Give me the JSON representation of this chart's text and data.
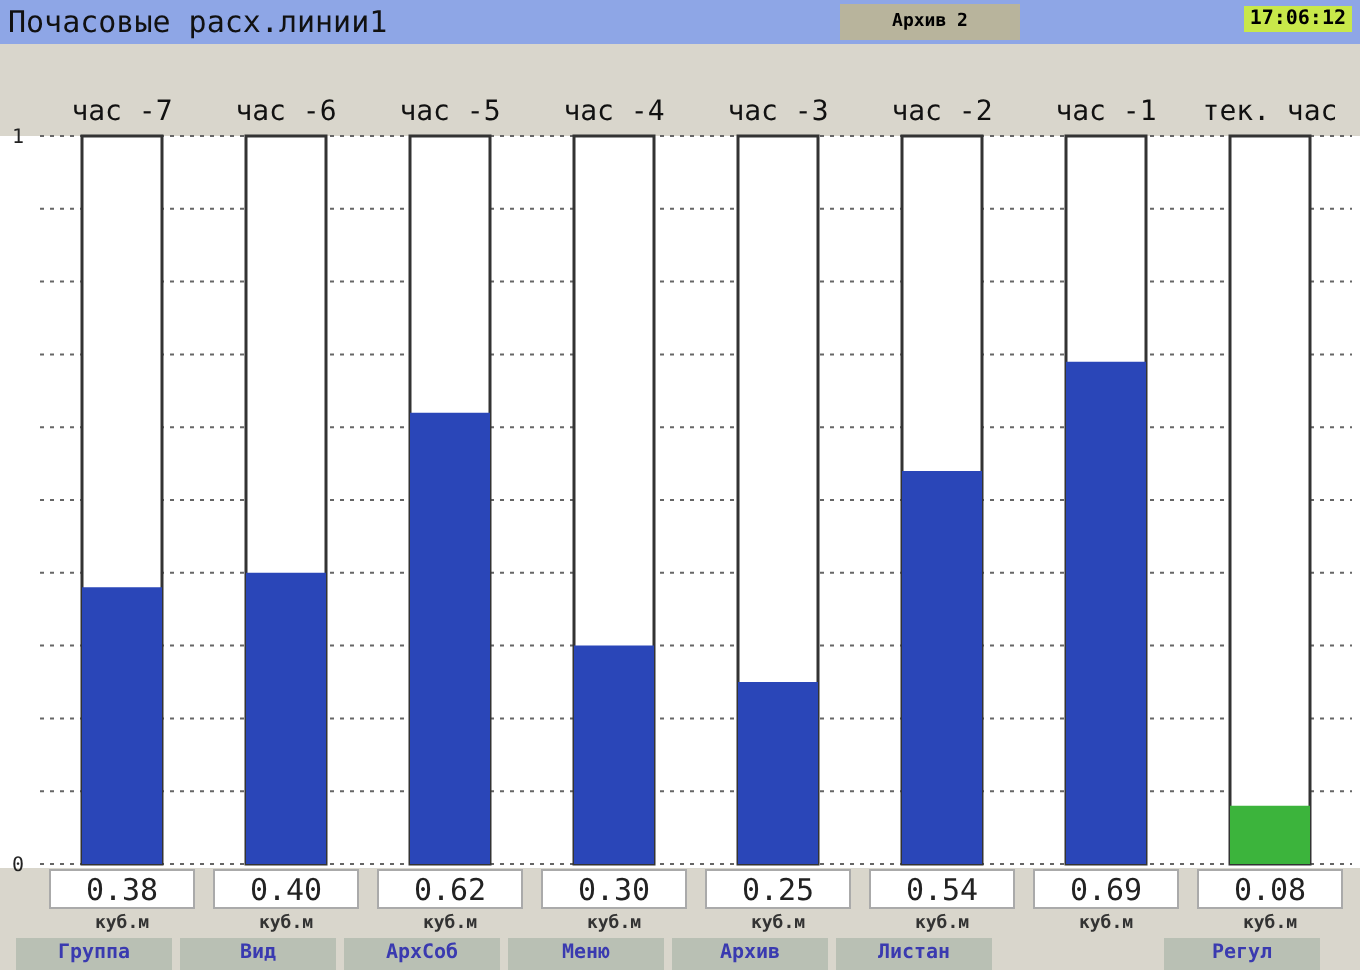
{
  "chart_data": {
    "type": "bar",
    "title": "Почасовые расх.линии1",
    "categories": [
      "час -7",
      "час -6",
      "час -5",
      "час -4",
      "час -3",
      "час -2",
      "час -1",
      "тек. час"
    ],
    "values": [
      0.38,
      0.4,
      0.62,
      0.3,
      0.25,
      0.54,
      0.69,
      0.08
    ],
    "colors": [
      "#2a46b8",
      "#2a46b8",
      "#2a46b8",
      "#2a46b8",
      "#2a46b8",
      "#2a46b8",
      "#2a46b8",
      "#3cb43c"
    ],
    "ylim": [
      0,
      1
    ],
    "yticks": [
      0,
      {
        "value": 0.1,
        "label": null
      },
      {
        "value": 0.2,
        "label": null
      },
      {
        "value": 0.3,
        "label": null
      },
      {
        "value": 0.4,
        "label": null
      },
      {
        "value": 0.5,
        "label": null
      },
      {
        "value": 0.6,
        "label": null
      },
      {
        "value": 0.7,
        "label": null
      },
      {
        "value": 0.8,
        "label": null
      },
      {
        "value": 0.9,
        "label": null
      },
      1
    ],
    "grid": "y",
    "value_labels": [
      "0.38",
      "0.40",
      "0.62",
      "0.30",
      "0.25",
      "0.54",
      "0.69",
      "0.08"
    ],
    "annotations": [
      "Архив 2",
      "17:06:12",
      "куб.м",
      "Группа",
      "Вид",
      "АрхСоб",
      "Меню",
      "Архив",
      "Листан",
      "Регул"
    ]
  }
}
